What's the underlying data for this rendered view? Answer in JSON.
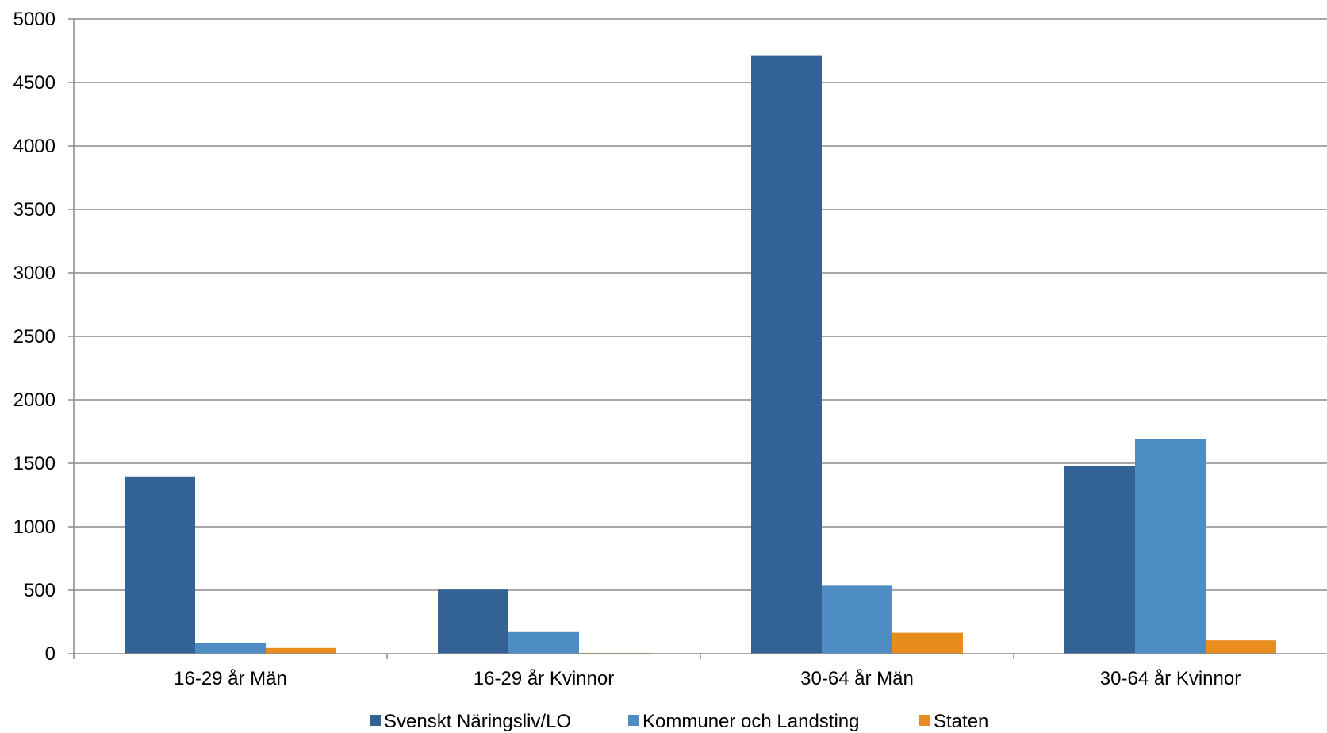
{
  "chart_data": {
    "type": "bar",
    "categories": [
      "16-29 år Män",
      "16-29 år Kvinnor",
      "30-64 år Män",
      "30-64 år Kvinnor"
    ],
    "series": [
      {
        "name": "Svenskt Näringsliv/LO",
        "color": "#336395",
        "values": [
          1395,
          505,
          4715,
          1480
        ]
      },
      {
        "name": "Kommuner och Landsting",
        "color": "#4E8DC3",
        "values": [
          85,
          170,
          535,
          1690
        ]
      },
      {
        "name": "Staten",
        "color": "#E88C1E",
        "values": [
          45,
          5,
          165,
          105
        ]
      }
    ],
    "yticks": [
      "0",
      "500",
      "1000",
      "1500",
      "2000",
      "2500",
      "3000",
      "3500",
      "4000",
      "4500",
      "5000"
    ],
    "ylim": [
      0,
      5000
    ],
    "grid": true,
    "legend_position": "bottom",
    "title": "",
    "xlabel": "",
    "ylabel": ""
  }
}
